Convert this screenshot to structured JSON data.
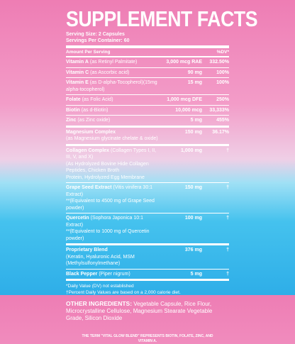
{
  "title": "SUPPLEMENT FACTS",
  "serving_size": "Serving Size: 2 Capsules",
  "servings_per_container": "Servings Per Container: 60",
  "header": {
    "amount": "Amount Per Serving",
    "dv": "%DV*"
  },
  "rows": [
    {
      "name": "Vitamin A",
      "note": "(as Retinyl Palmitate)",
      "amount": "3,000 mcg RAE",
      "dv": "332.50%"
    },
    {
      "name": "Vitamin C",
      "note": "(as Ascorbic acid)",
      "amount": "90 mg",
      "dv": "100%"
    },
    {
      "name": "Vitamin E",
      "note": "(as D-alpha-Tocopherol)(15mg alpha-tocopherol)",
      "amount": "15 mg",
      "dv": "100%"
    },
    {
      "name": "Folate",
      "note": "(as Folic Acid)",
      "amount": "1,000 mcg DFE",
      "dv": "250%"
    },
    {
      "name": "Biotin",
      "note": "(as d-Biotin)",
      "amount": "10,000 mcg",
      "dv": "33,333%"
    },
    {
      "name": "Zinc",
      "note": "(as Zinc oxide)",
      "amount": "5 mg",
      "dv": "455%"
    },
    {
      "name": "Magnesium Complex",
      "sub": [
        "(as Magnesium glycinate chelate & oxide)"
      ],
      "amount": "150 mg",
      "dv": "36.17%"
    },
    {
      "name": "Collagen Complex",
      "note": "(Collagen Types I, II, III, V, and X)",
      "sub": [
        "(As Hydrolyzed Bovine Hide Collagen Peptides, Chicken Broth",
        "Protein, Hydrolyzed Egg Membrane"
      ],
      "amount": "1,000 mg",
      "dv": "†"
    },
    {
      "name": "Grape Seed Extract",
      "note": "(Vitis vinifera 30:1 Extract)",
      "sub": [
        "**(Equivalent to 4500 mg of Grape Seed powder)"
      ],
      "amount": "150 mg",
      "dv": "†"
    },
    {
      "name": "Quercetin",
      "note": "(Sophora Japonica 10:1 Extract)",
      "sub": [
        "**(Equivalent to 1000 mg of Quercetin powder)"
      ],
      "amount": "100 mg",
      "dv": "†"
    },
    {
      "name": "Proprietary Blend",
      "sub": [
        "(Keratin, Hyaluronic Acid, MSM",
        "(Methylsulfonylmethane)"
      ],
      "amount": "376 mg",
      "dv": "†"
    },
    {
      "name": "Black Pepper",
      "note": "(Piper nigrum)",
      "amount": "5 mg",
      "dv": "†"
    }
  ],
  "footnotes": [
    "*Daily Value (DV) not established",
    "†Percent Daily Values are based on a 2,000 calorie diet."
  ],
  "other_ingredients": {
    "label": "OTHER INGREDIENTS:",
    "text": "Vegetable Capsule, Rice Flour, Microcrystalline Cellulose, Magnesium Stearate Vegetable Grade, Silicon Dioxide"
  },
  "footer": "THE TERM \"VITAL GLOW BLEND\" REPRESENTS BIOTIN, FOLATE, ZINC, AND VITAMIN A."
}
